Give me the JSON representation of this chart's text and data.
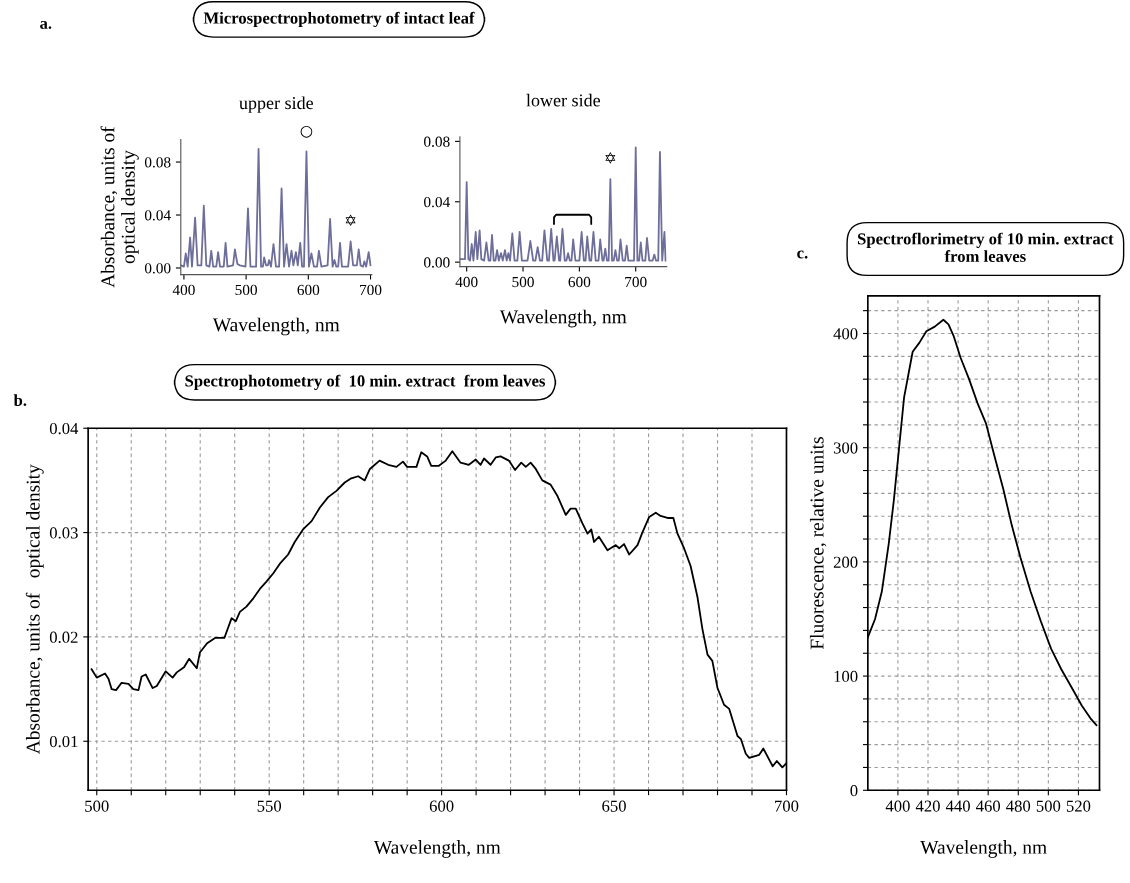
{
  "chart_data": [
    {
      "type": "line",
      "title": "upper side",
      "xlabel": "Wavelength, nm",
      "ylabel": "Absorbance, units of\noptical density",
      "xlim": [
        395,
        702
      ],
      "ylim": [
        -0.005,
        0.097
      ],
      "xticks": [
        400,
        500,
        600,
        700
      ],
      "yticks": [
        {
          "value": 0,
          "label": "0.00"
        },
        0.04,
        0.08
      ],
      "series": [
        {
          "color": "#6e6e9a",
          "x": [
            395,
            400,
            403,
            406,
            410,
            413,
            418,
            422,
            428,
            432,
            436,
            441,
            444,
            447,
            452,
            455,
            458,
            464,
            467,
            470,
            479,
            482,
            486,
            490,
            499,
            503,
            507,
            516,
            520,
            524,
            527,
            529,
            532,
            535,
            537,
            540,
            544,
            548,
            553,
            557,
            561,
            565,
            569,
            573,
            576,
            580,
            583,
            587,
            590,
            593,
            597,
            601,
            605,
            609,
            614,
            617,
            621,
            631,
            635,
            639,
            642,
            645,
            648,
            651,
            654,
            664,
            668,
            672,
            678,
            681,
            684,
            688,
            690,
            693,
            697,
            700
          ],
          "values": [
            0.002,
            0.001,
            0.011,
            0.001,
            0.023,
            0.001,
            0.038,
            0.002,
            0.002,
            0.047,
            0.002,
            0.001,
            0.013,
            0.001,
            0.001,
            0.012,
            0.001,
            0.001,
            0.019,
            0.001,
            0.002,
            0.014,
            0.003,
            0.002,
            0.001,
            0.045,
            0.001,
            0.001,
            0.09,
            0.001,
            0.001,
            0.008,
            0.002,
            0.002,
            0.006,
            0.001,
            0.018,
            0.001,
            0.001,
            0.06,
            0.001,
            0.018,
            0.001,
            0.013,
            0.002,
            0.012,
            0.002,
            0.019,
            0.001,
            0.001,
            0.088,
            0.001,
            0.011,
            0.001,
            0.001,
            0.013,
            0.001,
            0.002,
            0.037,
            0.001,
            0.006,
            0.001,
            0.001,
            0.019,
            0.001,
            0.001,
            0.02,
            0.002,
            0.002,
            0.014,
            0.002,
            0.001,
            0.005,
            0.001,
            0.012,
            0.002
          ]
        }
      ],
      "annotations": [
        "Microspectrophotometry of intact leaf",
        "a.",
        {
          "text": "○",
          "x": 597,
          "y": 0.088
        },
        {
          "text": "✡",
          "x": 668,
          "y": 0.02
        }
      ]
    },
    {
      "type": "line",
      "title": "lower side",
      "xlabel": "Wavelength, nm",
      "xlim": [
        388,
        755
      ],
      "ylim": [
        -0.003,
        0.083
      ],
      "xticks": [
        400,
        500,
        600,
        700
      ],
      "yticks": [
        {
          "value": 0,
          "label": "0.00"
        },
        0.04,
        0.08
      ],
      "series": [
        {
          "color": "#6e6e9a",
          "x": [
            388,
            397,
            400,
            403,
            406,
            409,
            412,
            416,
            419,
            423,
            426,
            431,
            435,
            439,
            442,
            445,
            448,
            451,
            454,
            457,
            461,
            464,
            468,
            471,
            474,
            477,
            481,
            485,
            490,
            494,
            498,
            508,
            513,
            518,
            522,
            526,
            530,
            534,
            538,
            543,
            546,
            550,
            554,
            556,
            560,
            564,
            566,
            570,
            574,
            577,
            580,
            583,
            586,
            589,
            593,
            600,
            604,
            608,
            611,
            614,
            618,
            621,
            625,
            629,
            634,
            637,
            641,
            643,
            646,
            649,
            652,
            655,
            658,
            661,
            664,
            667,
            670,
            673,
            677,
            681,
            684,
            687,
            697,
            700,
            703,
            706,
            709,
            712,
            717,
            720,
            724,
            730,
            733,
            736,
            740,
            743,
            747,
            751,
            753
          ],
          "values": [
            0.002,
            0.002,
            0.053,
            0.002,
            0.001,
            0.012,
            0.001,
            0.02,
            0.002,
            0.021,
            0.002,
            0.001,
            0.013,
            0.001,
            0.001,
            0.018,
            0.001,
            0.001,
            0.008,
            0.001,
            0.006,
            0.001,
            0.008,
            0.001,
            0.006,
            0.001,
            0.019,
            0.001,
            0.001,
            0.02,
            0.001,
            0.001,
            0.014,
            0.001,
            0.001,
            0.01,
            0.001,
            0.001,
            0.021,
            0.001,
            0.001,
            0.022,
            0.001,
            0.001,
            0.017,
            0.001,
            0.001,
            0.022,
            0.001,
            0.001,
            0.006,
            0.001,
            0.001,
            0.015,
            0.001,
            0.001,
            0.02,
            0.001,
            0.001,
            0.017,
            0.001,
            0.001,
            0.02,
            0.001,
            0.001,
            0.015,
            0.001,
            0.001,
            0.009,
            0.001,
            0.001,
            0.055,
            0.001,
            0.001,
            0.008,
            0.001,
            0.001,
            0.015,
            0.001,
            0.001,
            0.011,
            0.001,
            0.001,
            0.076,
            0.001,
            0.001,
            0.013,
            0.001,
            0.001,
            0.016,
            0.001,
            0.001,
            0.005,
            0.001,
            0.001,
            0.073,
            0.001,
            0.02,
            0.001
          ]
        }
      ],
      "annotations": [
        {
          "text": "✡",
          "x": 655,
          "y": 0.055
        }
      ]
    },
    {
      "type": "line",
      "title": "Spectrophotometry of  10 min. extract  from leaves",
      "xlabel": "Wavelength, nm",
      "ylabel": "Absorbance, units of   optical density",
      "xlim": [
        497.5,
        700
      ],
      "ylim": [
        0.0053,
        0.04
      ],
      "grid": true,
      "xticks": [
        500,
        {
          "value": 510,
          "label": null
        },
        {
          "value": 520,
          "label": null
        },
        {
          "value": 530,
          "label": null
        },
        {
          "value": 540,
          "label": null
        },
        550,
        {
          "value": 560,
          "label": null
        },
        {
          "value": 570,
          "label": null
        },
        {
          "value": 580,
          "label": null
        },
        {
          "value": 590,
          "label": null
        },
        600,
        {
          "value": 610,
          "label": null
        },
        {
          "value": 620,
          "label": null
        },
        {
          "value": 630,
          "label": null
        },
        {
          "value": 640,
          "label": null
        },
        650,
        {
          "value": 660,
          "label": null
        },
        {
          "value": 670,
          "label": null
        },
        {
          "value": 680,
          "label": null
        },
        {
          "value": 690,
          "label": null
        },
        700
      ],
      "yticks": [
        0.01,
        0.02,
        0.03,
        0.04
      ],
      "series": [
        {
          "color": "#000000",
          "x": [
            498.5,
            500,
            502.4,
            503.4,
            504.3,
            505.6,
            507.2,
            509.2,
            510.6,
            512.1,
            513.0,
            514.2,
            516.2,
            517.4,
            520.0,
            522.0,
            523.2,
            525.3,
            526.8,
            529.0,
            529.9,
            532.0,
            534.3,
            537.0,
            539.1,
            540.3,
            541.5,
            543.4,
            545.4,
            547.3,
            549.2,
            551.2,
            553.3,
            555.5,
            557.4,
            559.8,
            562.3,
            564.7,
            567.1,
            569.5,
            571.9,
            573.8,
            575.8,
            577.7,
            579.2,
            582.0,
            584.5,
            586.9,
            588.8,
            590.0,
            592.7,
            594.1,
            595.8,
            597.0,
            599.2,
            601.2,
            603.1,
            605.5,
            607.9,
            609.9,
            611.3,
            612.3,
            614.2,
            615.7,
            617.1,
            619.5,
            621.3,
            623.1,
            624.4,
            625.8,
            627.3,
            629.2,
            631.6,
            633.6,
            636.0,
            637.4,
            638.9,
            640.8,
            642.3,
            643.4,
            644.2,
            645.6,
            648.1,
            650.5,
            651.5,
            652.9,
            654.4,
            656.8,
            658.2,
            660.2,
            662.1,
            663.5,
            665.5,
            667.2,
            668.4,
            670.3,
            672.2,
            674.2,
            675.6,
            677.1,
            678.5,
            680.0,
            681.9,
            683.4,
            685.8,
            686.8,
            688.2,
            689.2,
            692.1,
            693.3,
            696.0,
            697.2,
            698.8,
            700
          ],
          "values": [
            0.0169,
            0.0161,
            0.0165,
            0.016,
            0.015,
            0.0149,
            0.0156,
            0.0155,
            0.015,
            0.0149,
            0.0162,
            0.0164,
            0.0151,
            0.0153,
            0.0167,
            0.0161,
            0.0166,
            0.0171,
            0.0179,
            0.017,
            0.0185,
            0.0194,
            0.0199,
            0.0199,
            0.0218,
            0.0215,
            0.0224,
            0.0229,
            0.0237,
            0.0246,
            0.0253,
            0.0261,
            0.0271,
            0.0279,
            0.0291,
            0.0303,
            0.0311,
            0.0324,
            0.0334,
            0.034,
            0.0348,
            0.0352,
            0.0354,
            0.035,
            0.0361,
            0.0369,
            0.0365,
            0.0363,
            0.0368,
            0.0363,
            0.0363,
            0.0377,
            0.0373,
            0.0364,
            0.0364,
            0.0369,
            0.0378,
            0.0367,
            0.0365,
            0.037,
            0.0365,
            0.0371,
            0.0365,
            0.0372,
            0.0373,
            0.0369,
            0.036,
            0.0367,
            0.0363,
            0.0367,
            0.0361,
            0.035,
            0.0346,
            0.0335,
            0.0317,
            0.0323,
            0.0323,
            0.0309,
            0.0299,
            0.0303,
            0.0291,
            0.0296,
            0.0283,
            0.0288,
            0.0285,
            0.0289,
            0.0279,
            0.0288,
            0.03,
            0.0315,
            0.0319,
            0.0316,
            0.0314,
            0.0314,
            0.0299,
            0.0285,
            0.0268,
            0.0238,
            0.0208,
            0.0183,
            0.0177,
            0.0151,
            0.0135,
            0.0131,
            0.0105,
            0.0102,
            0.0088,
            0.0084,
            0.0087,
            0.0093,
            0.0076,
            0.0081,
            0.0075,
            0.0079
          ]
        }
      ],
      "annotations": [
        "b."
      ]
    },
    {
      "type": "line",
      "title": "Spectroflorimetry of 10 min. extract\nfrom leaves",
      "xlabel": "Wavelength, nm",
      "ylabel": "Fluorescence, relative units",
      "xlim": [
        380,
        534
      ],
      "ylim": [
        0,
        433
      ],
      "grid": true,
      "xticks": [
        400,
        420,
        440,
        460,
        480,
        500,
        520
      ],
      "yticks": [
        0,
        {
          "value": 20,
          "label": null
        },
        {
          "value": 40,
          "label": null
        },
        {
          "value": 60,
          "label": null
        },
        {
          "value": 80,
          "label": null
        },
        100,
        {
          "value": 120,
          "label": null
        },
        {
          "value": 140,
          "label": null
        },
        {
          "value": 160,
          "label": null
        },
        {
          "value": 180,
          "label": null
        },
        200,
        {
          "value": 220,
          "label": null
        },
        {
          "value": 240,
          "label": null
        },
        {
          "value": 260,
          "label": null
        },
        {
          "value": 280,
          "label": null
        },
        300,
        {
          "value": 320,
          "label": null
        },
        {
          "value": 340,
          "label": null
        },
        {
          "value": 360,
          "label": null
        },
        {
          "value": 380,
          "label": null
        },
        400,
        {
          "value": 420,
          "label": null
        }
      ],
      "series": [
        {
          "color": "#000000",
          "x": [
            380,
            384.8,
            389.3,
            393.9,
            397.3,
            400.7,
            404.1,
            406.8,
            409.8,
            414.3,
            418.9,
            424.5,
            430.2,
            433.6,
            437.0,
            441.6,
            447.3,
            452.9,
            458.6,
            464.3,
            470.0,
            475.7,
            481.4,
            488.2,
            495.0,
            501.8,
            508.6,
            515.5,
            522.3,
            528.0,
            532.0
          ],
          "values": [
            134,
            150,
            174,
            216,
            254,
            299,
            344,
            363,
            384,
            392,
            402,
            406,
            412,
            408,
            398,
            379,
            360,
            339,
            321,
            292,
            264,
            232,
            204,
            174,
            148,
            124,
            106,
            90,
            74,
            63,
            57
          ]
        }
      ],
      "annotations": [
        "c."
      ]
    }
  ]
}
